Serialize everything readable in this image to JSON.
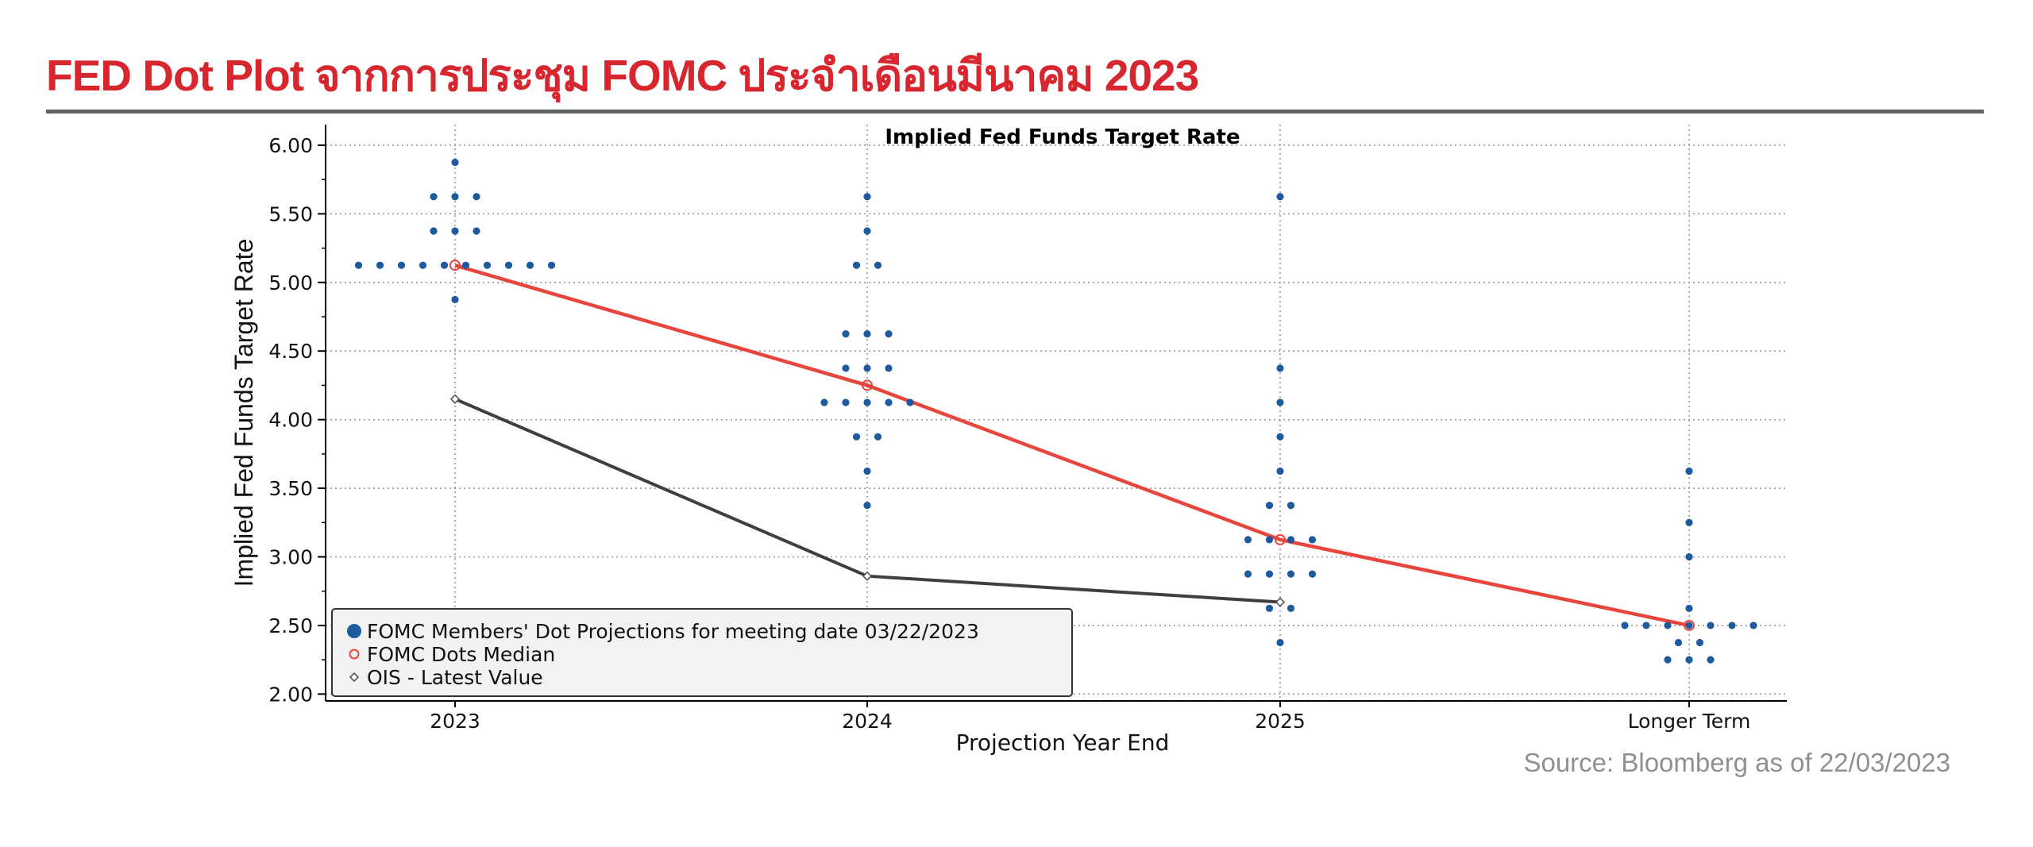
{
  "header": {
    "title": "FED Dot Plot จากการประชุม FOMC ประจำเดือนมีนาคม 2023"
  },
  "source_note": "Source: Bloomberg as of 22/03/2023",
  "colors": {
    "title": "#d7262e",
    "dots": "#1f5a9e",
    "median": "#e8453d",
    "ois": "#3f3f3f",
    "grid": "#9a9a9a"
  },
  "chart_data": {
    "type": "scatter",
    "title": "Implied Fed Funds Target Rate",
    "xlabel": "Projection Year End",
    "ylabel": "Implied Fed Funds Target Rate",
    "categories": [
      "2023",
      "2024",
      "2025",
      "Longer Term"
    ],
    "ylim": [
      1.95,
      6.15
    ],
    "yticks": [
      "2.00",
      "2.50",
      "3.00",
      "3.50",
      "4.00",
      "4.50",
      "5.00",
      "5.50",
      "6.00"
    ],
    "grid": true,
    "legend_position": "bottom-left",
    "legend": [
      "FOMC Members' Dot Projections for meeting date 03/22/2023",
      "FOMC Dots Median",
      "OIS - Latest Value"
    ],
    "dot_projections": [
      {
        "category": "2023",
        "rates": [
          {
            "rate": 5.875,
            "count": 1
          },
          {
            "rate": 5.625,
            "count": 3
          },
          {
            "rate": 5.375,
            "count": 3
          },
          {
            "rate": 5.125,
            "count": 10
          },
          {
            "rate": 4.875,
            "count": 1
          }
        ]
      },
      {
        "category": "2024",
        "rates": [
          {
            "rate": 5.625,
            "count": 1
          },
          {
            "rate": 5.375,
            "count": 1
          },
          {
            "rate": 5.125,
            "count": 2
          },
          {
            "rate": 4.625,
            "count": 3
          },
          {
            "rate": 4.375,
            "count": 3
          },
          {
            "rate": 4.125,
            "count": 5
          },
          {
            "rate": 3.875,
            "count": 2
          },
          {
            "rate": 3.625,
            "count": 1
          },
          {
            "rate": 3.375,
            "count": 1
          }
        ]
      },
      {
        "category": "2025",
        "rates": [
          {
            "rate": 5.625,
            "count": 1
          },
          {
            "rate": 4.375,
            "count": 1
          },
          {
            "rate": 4.125,
            "count": 1
          },
          {
            "rate": 3.875,
            "count": 1
          },
          {
            "rate": 3.625,
            "count": 1
          },
          {
            "rate": 3.375,
            "count": 2
          },
          {
            "rate": 3.125,
            "count": 4
          },
          {
            "rate": 2.875,
            "count": 4
          },
          {
            "rate": 2.625,
            "count": 2
          },
          {
            "rate": 2.375,
            "count": 1
          }
        ]
      },
      {
        "category": "Longer Term",
        "rates": [
          {
            "rate": 3.625,
            "count": 1
          },
          {
            "rate": 3.25,
            "count": 1
          },
          {
            "rate": 3.0,
            "count": 1
          },
          {
            "rate": 2.625,
            "count": 1
          },
          {
            "rate": 2.5,
            "count": 7
          },
          {
            "rate": 2.375,
            "count": 2
          },
          {
            "rate": 2.25,
            "count": 3
          }
        ]
      }
    ],
    "series": [
      {
        "name": "FOMC Dots Median",
        "values": [
          5.125,
          4.25,
          3.125,
          2.5
        ]
      },
      {
        "name": "OIS - Latest Value",
        "values": [
          4.15,
          2.86,
          2.67,
          null
        ]
      }
    ]
  }
}
